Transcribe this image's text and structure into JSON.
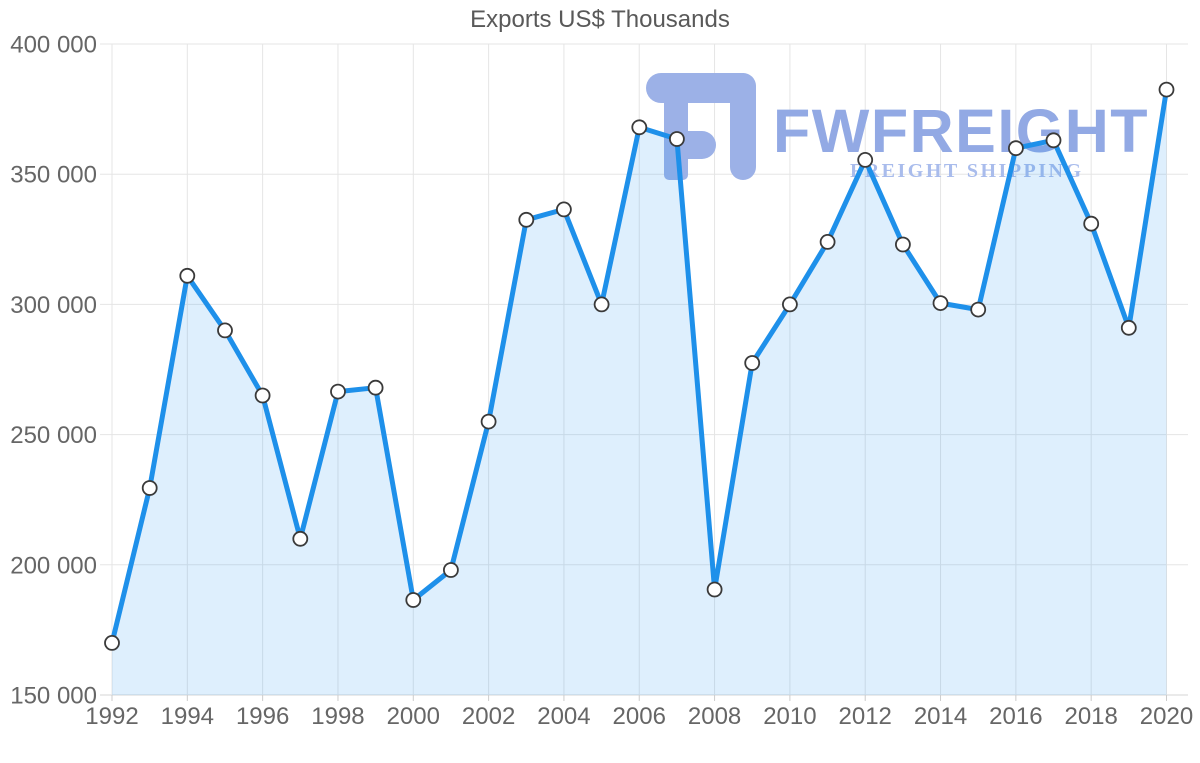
{
  "title": "Exports US$ Thousands",
  "watermark": {
    "brand": "FWFREIGHT",
    "subtitle": "FREIGHT SHIPPING",
    "icon_color": "#9cb1e7",
    "brand_color": "#92a9e4",
    "subtitle_color": "#a9bcec"
  },
  "chart_data": {
    "type": "area",
    "title": "Exports US$ Thousands",
    "x": [
      1992,
      1993,
      1994,
      1995,
      1996,
      1997,
      1998,
      1999,
      2000,
      2001,
      2002,
      2003,
      2004,
      2005,
      2006,
      2007,
      2008,
      2009,
      2010,
      2011,
      2012,
      2013,
      2014,
      2015,
      2016,
      2017,
      2018,
      2019,
      2020
    ],
    "series": [
      {
        "name": "Exports US$ Thousands",
        "values": [
          170000,
          229500,
          311000,
          290000,
          265000,
          210000,
          266500,
          268000,
          186500,
          198000,
          255000,
          332500,
          336500,
          300000,
          368000,
          363500,
          190500,
          277500,
          300000,
          324000,
          355500,
          323000,
          300500,
          298000,
          360000,
          363000,
          331000,
          291000,
          382500
        ]
      }
    ],
    "xlabel": "",
    "ylabel": "",
    "ylim": [
      150000,
      400000
    ],
    "yticks": [
      150000,
      200000,
      250000,
      300000,
      350000,
      400000
    ],
    "ytick_labels": [
      "150 000",
      "200 000",
      "250 000",
      "300 000",
      "350 000",
      "400 000"
    ],
    "xtick_labels": [
      "1992",
      "1994",
      "1996",
      "1998",
      "2000",
      "2002",
      "2004",
      "2006",
      "2008",
      "2010",
      "2012",
      "2014",
      "2016",
      "2018",
      "2020"
    ],
    "grid": true,
    "legend": false,
    "marker": "circle",
    "colors": {
      "line": "#1e90ea",
      "area_fill": "#2196f3",
      "area_opacity": 0.15,
      "marker_fill": "#ffffff",
      "marker_stroke": "#3a3a3a",
      "grid": "#e5e5e5",
      "axis_line": "#d6d6d6",
      "tick": "#cccccc",
      "axis_text": "#666666",
      "title_text": "#595959"
    }
  }
}
